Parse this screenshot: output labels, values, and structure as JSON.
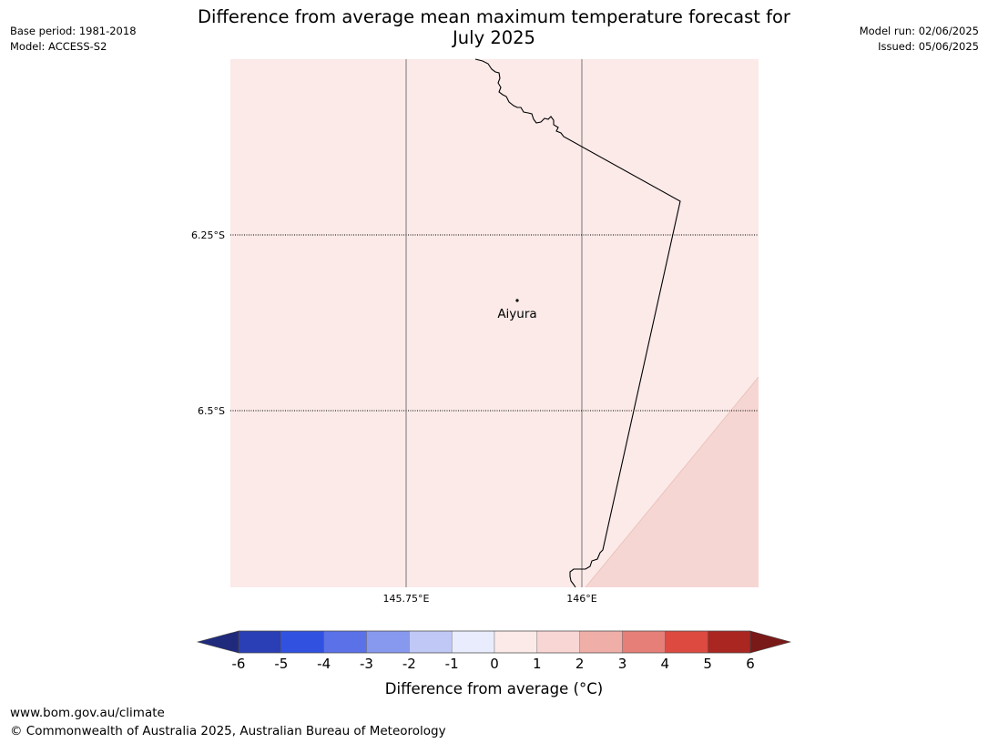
{
  "header": {
    "title_line1": "Difference from average mean maximum temperature forecast for",
    "title_line2": "July 2025",
    "base_period": "Base period: 1981-2018",
    "model": "Model: ACCESS-S2",
    "model_run": "Model run: 02/06/2025",
    "issued": "Issued: 05/06/2025"
  },
  "map": {
    "lat_labels": [
      "6.25°S",
      "6.5°S"
    ],
    "lon_labels": [
      "145.75°E",
      "146°E"
    ],
    "place": "Aiyura",
    "fill_colors": {
      "band_0_to_1": "#fbeae8",
      "band_1_to_2": "#f5d6d3"
    },
    "coastline_color": "#000000"
  },
  "colorbar": {
    "label": "Difference from average (°C)",
    "ticks": [
      "-6",
      "-5",
      "-4",
      "-3",
      "-2",
      "-1",
      "0",
      "1",
      "2",
      "3",
      "4",
      "5",
      "6"
    ],
    "under_color": "#1f2a7d",
    "over_color": "#7a1a18",
    "colors": [
      "#2a3fb5",
      "#3152e0",
      "#5a71e8",
      "#8798ef",
      "#c0c8f5",
      "#e8ecfc",
      "#fceae8",
      "#f7d6d3",
      "#efaea8",
      "#e57f78",
      "#dc4a40",
      "#aa2620"
    ]
  },
  "footer": {
    "url": "www.bom.gov.au/climate",
    "copyright": "© Commonwealth of Australia 2025, Australian Bureau of Meteorology"
  }
}
